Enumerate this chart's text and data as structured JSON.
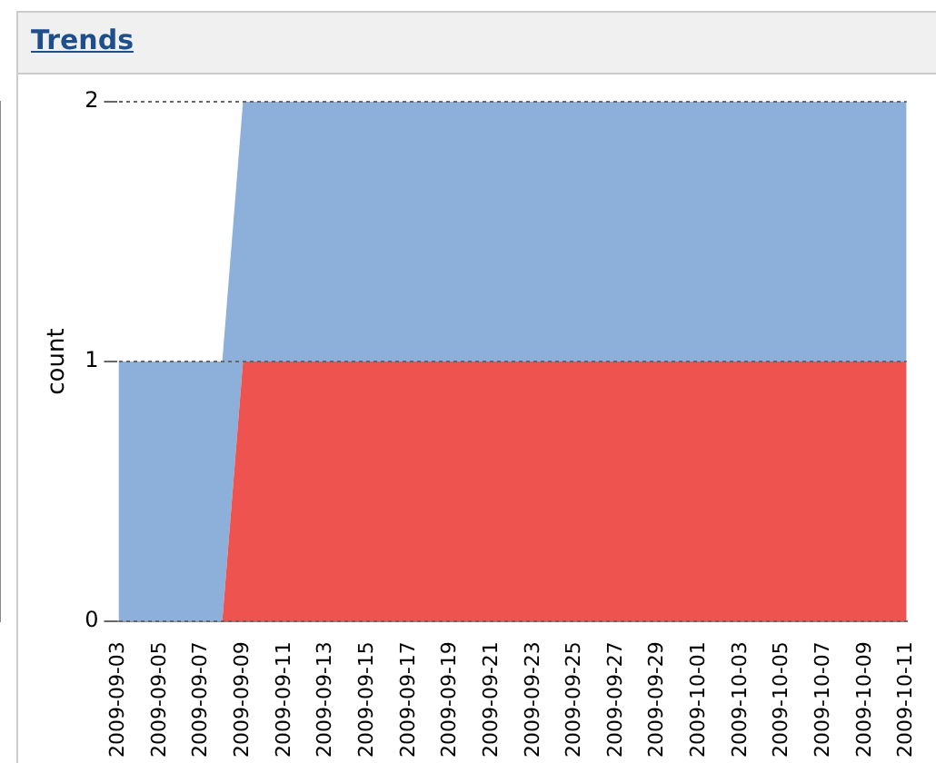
{
  "chart_data": {
    "type": "area",
    "title": "Trends",
    "ylabel": "count",
    "stacked": true,
    "grid": "y",
    "legend": false,
    "categories": [
      "2009-09-03",
      null,
      "2009-09-05",
      null,
      "2009-09-07",
      null,
      "2009-09-09",
      null,
      "2009-09-11",
      null,
      "2009-09-13",
      null,
      "2009-09-15",
      null,
      "2009-09-17",
      null,
      "2009-09-19",
      null,
      "2009-09-21",
      null,
      "2009-09-23",
      null,
      "2009-09-25",
      null,
      "2009-09-27",
      null,
      "2009-09-29",
      null,
      "2009-10-01",
      null,
      "2009-10-03",
      null,
      "2009-10-05",
      null,
      "2009-10-07",
      null,
      "2009-10-09",
      null,
      "2009-10-11"
    ],
    "series": [
      {
        "color": "#ef5350",
        "values": [
          0,
          0,
          0,
          0,
          0,
          0,
          1,
          1,
          1,
          1,
          1,
          1,
          1,
          1,
          1,
          1,
          1,
          1,
          1,
          1,
          1,
          1,
          1,
          1,
          1,
          1,
          1,
          1,
          1,
          1,
          1,
          1,
          1,
          1,
          1,
          1,
          1,
          1,
          1
        ]
      },
      {
        "color": "#8db0da",
        "values": [
          1,
          1,
          1,
          1,
          1,
          1,
          1,
          1,
          1,
          1,
          1,
          1,
          1,
          1,
          1,
          1,
          1,
          1,
          1,
          1,
          1,
          1,
          1,
          1,
          1,
          1,
          1,
          1,
          1,
          1,
          1,
          1,
          1,
          1,
          1,
          1,
          1,
          1,
          1
        ]
      }
    ],
    "ylim": [
      0,
      2
    ],
    "yticks": [
      0,
      1,
      2
    ]
  }
}
